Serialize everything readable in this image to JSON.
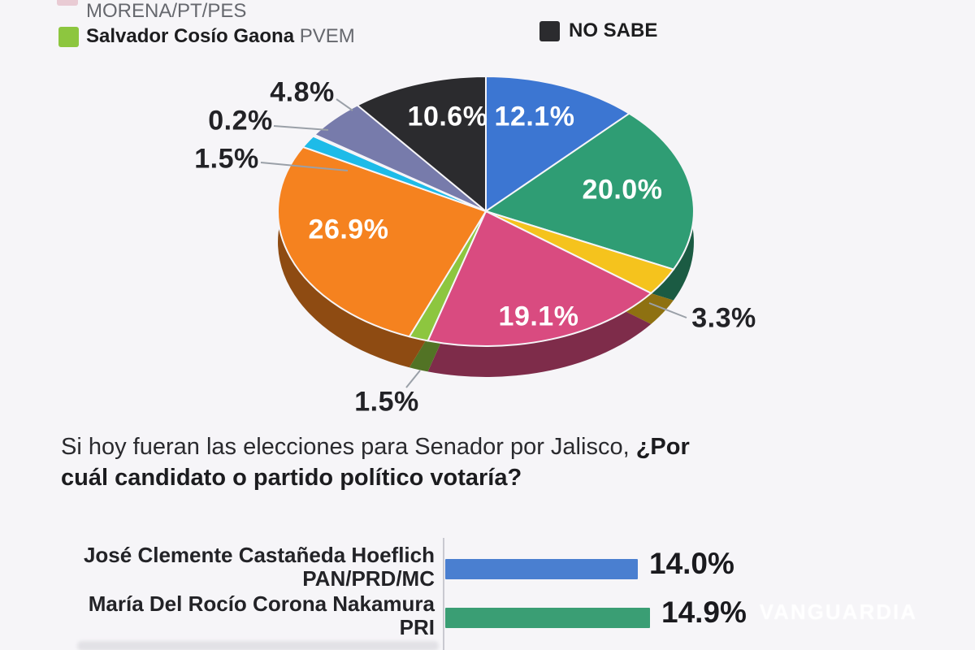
{
  "background": "#f6f5f8",
  "legend": {
    "left": [
      {
        "name": "",
        "party": "MORENA/PT/PES",
        "color": "#c95f77",
        "partial": true
      },
      {
        "name": "Salvador Cosío Gaona",
        "party": "PVEM",
        "color": "#8dc63f",
        "partial": false
      }
    ],
    "right": [
      {
        "name": "NO SABE",
        "party": "",
        "color": "#2b2b2e",
        "partial": false
      }
    ]
  },
  "question": {
    "line1_normal": "Si hoy fueran las elecciones para Senador por Jalisco, ",
    "line1_bold": "¿Por",
    "line2_bold": "cuál candidato o partido político votaría?"
  },
  "watermark": "VANGUARDIA",
  "chart_data": [
    {
      "type": "pie",
      "style": "3d",
      "total": 100,
      "legend_position": "top",
      "slices": [
        {
          "label": "12.1%",
          "value": 12.1,
          "color": "#3c76d2",
          "label_placement": "inside"
        },
        {
          "label": "20.0%",
          "value": 20.0,
          "color": "#2f9d74",
          "label_placement": "inside"
        },
        {
          "label": "3.3%",
          "value": 3.3,
          "color": "#f5c31d",
          "label_placement": "outside"
        },
        {
          "label": "19.1%",
          "value": 19.1,
          "color": "#d94b80",
          "label_placement": "inside"
        },
        {
          "label": "1.5%",
          "value": 1.5,
          "color": "#8dc63f",
          "label_placement": "outside"
        },
        {
          "label": "26.9%",
          "value": 26.9,
          "color": "#f5821f",
          "label_placement": "inside"
        },
        {
          "label": "1.5%",
          "value": 1.5,
          "color": "#1ebbe8",
          "label_placement": "outside"
        },
        {
          "label": "0.2%",
          "value": 0.2,
          "color": "#f3f1f4",
          "label_placement": "outside"
        },
        {
          "label": "4.8%",
          "value": 4.8,
          "color": "#777bab",
          "label_placement": "outside"
        },
        {
          "label": "10.6%",
          "value": 10.6,
          "color": "#2b2b2e",
          "label_placement": "inside"
        }
      ]
    },
    {
      "type": "bar",
      "orientation": "horizontal",
      "title": "Si hoy fueran las elecciones para Senador por Jalisco, ¿Por cuál candidato o partido político votaría?",
      "value_suffix": "%",
      "rows": [
        {
          "name": "José Clemente Castañeda Hoeflich",
          "party": "PAN/PRD/MC",
          "value": 14.0,
          "label": "14.0%",
          "color": "#4a7fd0"
        },
        {
          "name": "María Del Rocío Corona Nakamura",
          "party": "PRI",
          "value": 14.9,
          "label": "14.9%",
          "color": "#3a9e74"
        }
      ],
      "truncated_rows_below": true
    }
  ]
}
